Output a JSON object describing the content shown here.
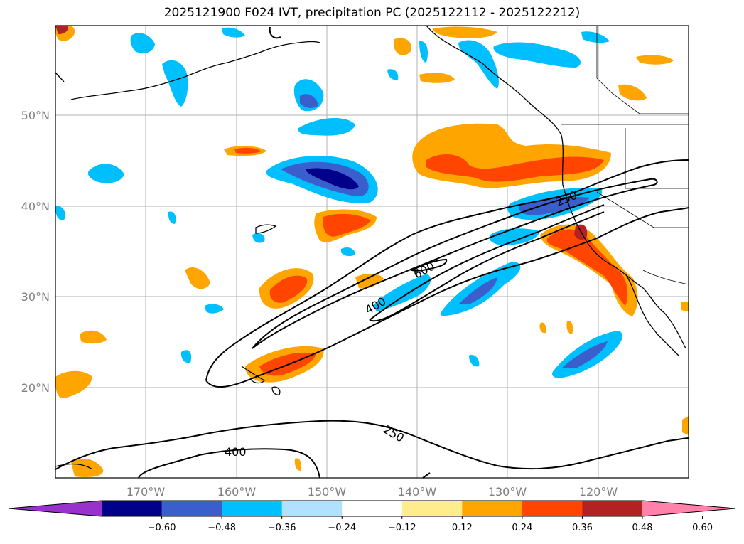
{
  "title": "2025121900 F024 IVT, precipitation PC (2025122112 - 2025122212)",
  "map": {
    "lat_labels": [
      {
        "text": "50°N",
        "value": 50
      },
      {
        "text": "40°N",
        "value": 40
      },
      {
        "text": "30°N",
        "value": 30
      },
      {
        "text": "20°N",
        "value": 20
      }
    ],
    "lon_labels": [
      {
        "text": "170°W",
        "value": -170
      },
      {
        "text": "160°W",
        "value": -160
      },
      {
        "text": "150°W",
        "value": -150
      },
      {
        "text": "140°W",
        "value": -140
      },
      {
        "text": "130°W",
        "value": -130
      },
      {
        "text": "120°W",
        "value": -120
      }
    ],
    "ivt_contour_labels": [
      "250",
      "600",
      "400",
      "250",
      "400"
    ]
  },
  "colorbar": {
    "ticks": [
      "−0.60",
      "−0.48",
      "−0.36",
      "−0.24",
      "−0.12",
      "0.12",
      "0.24",
      "0.36",
      "0.48",
      "0.60"
    ],
    "colors": [
      "#9932cc",
      "#00008b",
      "#3a5fcd",
      "#00bfff",
      "#b0e2ff",
      "#ffffff",
      "#ffec8b",
      "#ffa500",
      "#ff4500",
      "#b22222",
      "#ff82ab"
    ]
  }
}
